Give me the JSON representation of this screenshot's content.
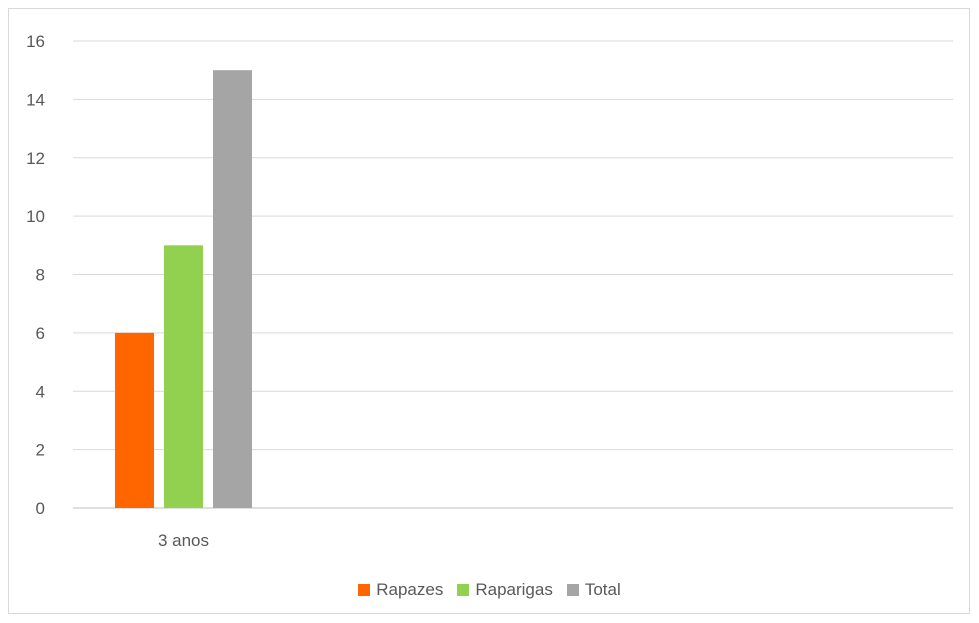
{
  "chart_data": {
    "type": "bar",
    "categories": [
      "3 anos"
    ],
    "series": [
      {
        "name": "Rapazes",
        "values": [
          6
        ],
        "color": "#ff6600"
      },
      {
        "name": "Raparigas",
        "values": [
          9
        ],
        "color": "#92d050"
      },
      {
        "name": "Total",
        "values": [
          15
        ],
        "color": "#a5a5a5"
      }
    ],
    "title": "",
    "xlabel": "",
    "ylabel": "",
    "ylim": [
      0,
      16
    ],
    "yticks": [
      "0",
      "2",
      "4",
      "6",
      "8",
      "10",
      "12",
      "14",
      "16"
    ],
    "grid": true,
    "legend_position": "bottom"
  }
}
